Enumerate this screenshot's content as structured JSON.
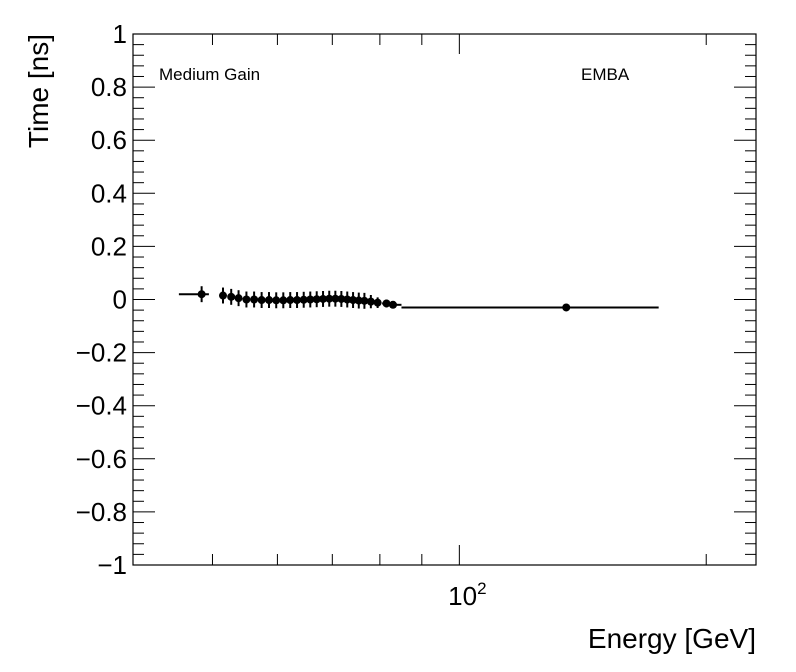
{
  "chart_data": {
    "type": "scatter",
    "xlabel": "Energy [GeV]",
    "ylabel": "Time [ns]",
    "xscale": "log",
    "xlim": [
      40,
      230
    ],
    "ylim": [
      -1,
      1
    ],
    "y_ticks": [
      {
        "value": -1,
        "label": "−1"
      },
      {
        "value": -0.8,
        "label": "−0.8"
      },
      {
        "value": -0.6,
        "label": "−0.6"
      },
      {
        "value": -0.4,
        "label": "−0.4"
      },
      {
        "value": -0.2,
        "label": "−0.2"
      },
      {
        "value": 0,
        "label": "0"
      },
      {
        "value": 0.2,
        "label": "0.2"
      },
      {
        "value": 0.4,
        "label": "0.4"
      },
      {
        "value": 0.6,
        "label": "0.6"
      },
      {
        "value": 0.8,
        "label": "0.8"
      },
      {
        "value": 1,
        "label": "1"
      }
    ],
    "x_labeled_tick": {
      "value": 100,
      "base": "10",
      "exponent": "2"
    },
    "annotations": {
      "left": "Medium Gain",
      "right": "EMBA"
    },
    "grid": false,
    "points": [
      {
        "x": 48.5,
        "y": 0.02,
        "xlo": 45.5,
        "xhi": 49.5,
        "yerr": 0.03
      },
      {
        "x": 51.5,
        "y": 0.015,
        "xlo": 51.0,
        "xhi": 52.0,
        "yerr": 0.03
      },
      {
        "x": 52.7,
        "y": 0.01,
        "xlo": 52.2,
        "xhi": 53.2,
        "yerr": 0.03
      },
      {
        "x": 53.8,
        "y": 0.005,
        "xlo": 53.3,
        "xhi": 54.3,
        "yerr": 0.03
      },
      {
        "x": 55.0,
        "y": 0.0,
        "xlo": 54.5,
        "xhi": 55.5,
        "yerr": 0.03
      },
      {
        "x": 56.2,
        "y": 0.0,
        "xlo": 55.7,
        "xhi": 56.7,
        "yerr": 0.03
      },
      {
        "x": 57.4,
        "y": -0.002,
        "xlo": 56.9,
        "xhi": 57.9,
        "yerr": 0.03
      },
      {
        "x": 58.6,
        "y": -0.002,
        "xlo": 58.1,
        "xhi": 59.1,
        "yerr": 0.03
      },
      {
        "x": 59.8,
        "y": -0.003,
        "xlo": 59.3,
        "xhi": 60.3,
        "yerr": 0.03
      },
      {
        "x": 61.0,
        "y": -0.003,
        "xlo": 60.5,
        "xhi": 61.5,
        "yerr": 0.03
      },
      {
        "x": 62.2,
        "y": -0.002,
        "xlo": 61.7,
        "xhi": 62.7,
        "yerr": 0.03
      },
      {
        "x": 63.4,
        "y": -0.002,
        "xlo": 62.9,
        "xhi": 63.9,
        "yerr": 0.03
      },
      {
        "x": 64.6,
        "y": -0.001,
        "xlo": 64.1,
        "xhi": 65.1,
        "yerr": 0.03
      },
      {
        "x": 65.8,
        "y": 0.0,
        "xlo": 65.3,
        "xhi": 66.3,
        "yerr": 0.03
      },
      {
        "x": 67.0,
        "y": 0.001,
        "xlo": 66.5,
        "xhi": 67.5,
        "yerr": 0.03
      },
      {
        "x": 68.2,
        "y": 0.002,
        "xlo": 67.7,
        "xhi": 68.7,
        "yerr": 0.03
      },
      {
        "x": 69.4,
        "y": 0.003,
        "xlo": 68.9,
        "xhi": 69.9,
        "yerr": 0.03
      },
      {
        "x": 70.6,
        "y": 0.003,
        "xlo": 70.1,
        "xhi": 71.1,
        "yerr": 0.03
      },
      {
        "x": 71.8,
        "y": 0.002,
        "xlo": 71.3,
        "xhi": 72.3,
        "yerr": 0.03
      },
      {
        "x": 73.0,
        "y": 0.0,
        "xlo": 72.5,
        "xhi": 73.5,
        "yerr": 0.03
      },
      {
        "x": 74.2,
        "y": -0.002,
        "xlo": 73.7,
        "xhi": 74.7,
        "yerr": 0.03
      },
      {
        "x": 75.4,
        "y": -0.004,
        "xlo": 74.9,
        "xhi": 75.9,
        "yerr": 0.03
      },
      {
        "x": 76.6,
        "y": -0.005,
        "xlo": 76.1,
        "xhi": 77.1,
        "yerr": 0.03
      },
      {
        "x": 78.0,
        "y": -0.008,
        "xlo": 77.3,
        "xhi": 78.7,
        "yerr": 0.025
      },
      {
        "x": 79.5,
        "y": -0.012,
        "xlo": 78.8,
        "xhi": 80.2,
        "yerr": 0.02
      },
      {
        "x": 81.5,
        "y": -0.015,
        "xlo": 80.5,
        "xhi": 82.5,
        "yerr": 0.015
      },
      {
        "x": 83.0,
        "y": -0.02,
        "xlo": 82.5,
        "xhi": 85.0,
        "yerr": 0.012
      },
      {
        "x": 135.0,
        "y": -0.03,
        "xlo": 85.0,
        "xhi": 175.0,
        "yerr": 0.005
      }
    ]
  }
}
